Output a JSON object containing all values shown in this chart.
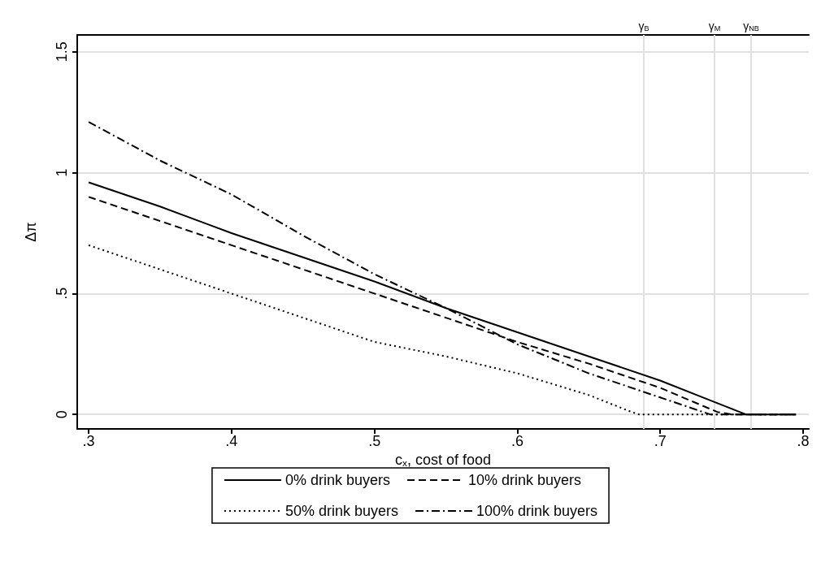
{
  "chart_data": {
    "type": "line",
    "xlabel": "c$_{x}$, cost of food",
    "ylabel": "Δπ",
    "xlim": [
      0.292,
      0.804
    ],
    "xticks": [
      {
        "value": 0.3,
        "label": ".3"
      },
      {
        "value": 0.4,
        "label": ".4"
      },
      {
        "value": 0.5,
        "label": ".5"
      },
      {
        "value": 0.6,
        "label": ".6"
      },
      {
        "value": 0.7,
        "label": ".7"
      },
      {
        "value": 0.8,
        "label": ".8"
      }
    ],
    "ref_lines": [
      {
        "axis": "x",
        "value": 0.6885,
        "label": "γ$_{B}$",
        "color": "#e0e0e0"
      },
      {
        "axis": "x",
        "value": 0.738,
        "label": "γ$_{M}$",
        "color": "#e0e0e0"
      },
      {
        "axis": "x",
        "value": 0.7636,
        "label": "γ$_{NB}$",
        "color": "#e0e0e0"
      }
    ],
    "ylim": [
      -0.06,
      1.57
    ],
    "yticks": [
      0,
      {
        "value": 0.5,
        "label": ".5"
      },
      1,
      1.5
    ],
    "grid": true,
    "legend": "bottom",
    "marker": "none",
    "series": [
      {
        "name": "0% drink buyers",
        "color": "#000000",
        "line_style": "solid",
        "x": [
          0.3,
          0.35,
          0.4,
          0.45,
          0.5,
          0.55,
          0.6,
          0.65,
          0.7,
          0.73,
          0.76,
          0.795
        ],
        "values": [
          0.96,
          0.86,
          0.75,
          0.65,
          0.55,
          0.44,
          0.34,
          0.24,
          0.14,
          0.07,
          0,
          0
        ]
      },
      {
        "name": "10% drink buyers",
        "color": "#000000",
        "line_style": "dashed",
        "x": [
          0.3,
          0.35,
          0.4,
          0.45,
          0.5,
          0.55,
          0.6,
          0.65,
          0.7,
          0.74,
          0.75,
          0.795
        ],
        "values": [
          0.9,
          0.8,
          0.7,
          0.6,
          0.5,
          0.4,
          0.3,
          0.21,
          0.11,
          0.01,
          0,
          0
        ]
      },
      {
        "name": "50% drink buyers",
        "color": "#000000",
        "line_style": "dotted",
        "x": [
          0.3,
          0.35,
          0.4,
          0.45,
          0.5,
          0.55,
          0.6,
          0.65,
          0.68,
          0.685,
          0.795
        ],
        "values": [
          0.7,
          0.6,
          0.5,
          0.4,
          0.3,
          0.24,
          0.17,
          0.08,
          0.01,
          0,
          0
        ]
      },
      {
        "name": "100% drink buyers",
        "color": "#000000",
        "line_style": "dashdot",
        "x": [
          0.3,
          0.35,
          0.4,
          0.45,
          0.5,
          0.55,
          0.6,
          0.65,
          0.7,
          0.735,
          0.795
        ],
        "values": [
          1.21,
          1.05,
          0.91,
          0.74,
          0.58,
          0.44,
          0.29,
          0.17,
          0.07,
          0,
          0
        ]
      }
    ]
  }
}
